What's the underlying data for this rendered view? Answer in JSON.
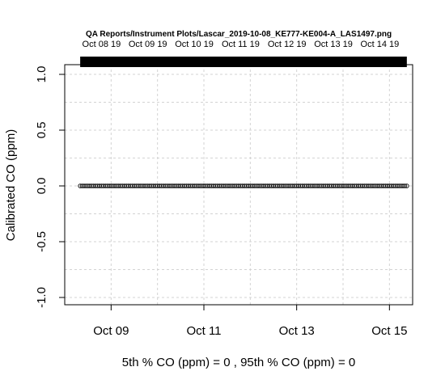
{
  "chart_data": {
    "type": "scatter",
    "title": "QA Reports/Instrument Plots/Lascar_2019-10-08_KE777-KE004-A_LAS1497.png",
    "xlabel": "5th % CO (ppm) =  0 , 95th % CO (ppm)  =  0",
    "ylabel": "Calibrated CO (ppm)",
    "x_range": [
      "2019-10-08 00:00",
      "2019-10-15 12:00"
    ],
    "data_x_range": [
      "2019-10-08 08:00",
      "2019-10-15 09:00"
    ],
    "ylim": [
      -1.0,
      1.0
    ],
    "yticks": [
      -1.0,
      -0.5,
      0.0,
      0.5,
      1.0
    ],
    "ytick_labels": [
      "-1.0",
      "-0.5",
      "0.0",
      "0.5",
      "1.0"
    ],
    "xticks": [
      "2019-10-09",
      "2019-10-11",
      "2019-10-13",
      "2019-10-15"
    ],
    "xtick_labels": [
      "Oct 09",
      "Oct 11",
      "Oct 13",
      "Oct 15"
    ],
    "top_ticks": [
      "2019-10-08 19:00",
      "2019-10-09 19:00",
      "2019-10-10 19:00",
      "2019-10-11 19:00",
      "2019-10-12 19:00",
      "2019-10-13 19:00",
      "2019-10-14 19:00"
    ],
    "top_tick_labels": [
      "Oct 08 19",
      "Oct 09 19",
      "Oct 10 19",
      "Oct 11 19",
      "Oct 12 19",
      "Oct 13 19",
      "Oct 14 19"
    ],
    "grid": true,
    "series": [
      {
        "values_constant": 0,
        "x_start": "2019-10-08 08:00",
        "x_end": "2019-10-15 09:00",
        "marker": "open-circle"
      }
    ]
  }
}
